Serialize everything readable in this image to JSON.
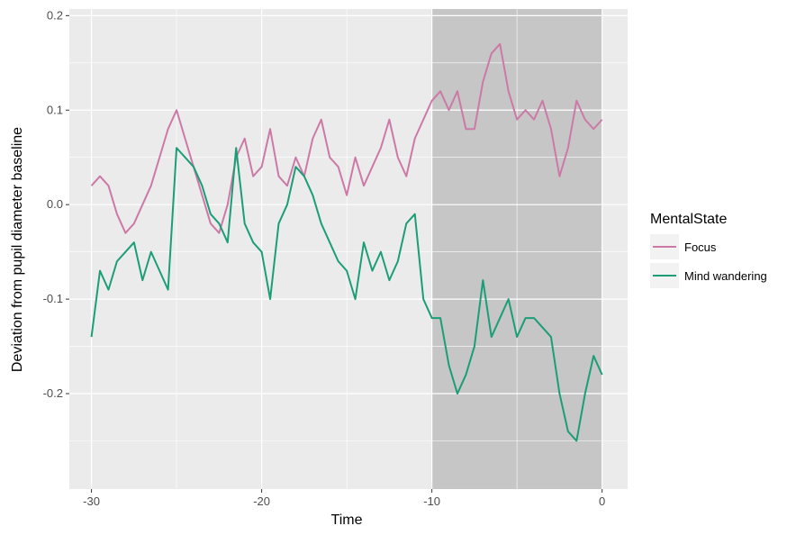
{
  "chart_data": {
    "type": "line",
    "xlabel": "Time",
    "ylabel": "Deviation from pupil diameter baseline",
    "legend_title": "MentalState",
    "legend": "right",
    "grid": true,
    "xlim": [
      -31.3,
      1.5
    ],
    "ylim": [
      -0.301,
      0.207
    ],
    "xticks": [
      -30,
      -20,
      -10,
      0
    ],
    "yticks": [
      0.2,
      0.1,
      {
        "value": 0,
        "label": "0.0"
      },
      -0.1,
      -0.2
    ],
    "xminor": [
      -25,
      -15,
      -5
    ],
    "yminor": [
      0.15,
      0.05,
      -0.05,
      -0.15,
      -0.25
    ],
    "highlight": [
      -10,
      0
    ],
    "highlight_color": "#c6c6c6",
    "x": [
      -30,
      -29.5,
      -29,
      -28.5,
      -28,
      -27.5,
      -27,
      -26.5,
      -26,
      -25.5,
      -25,
      -24.5,
      -24,
      -23.5,
      -23,
      -22.5,
      -22,
      -21.5,
      -21,
      -20.5,
      -20,
      -19.5,
      -19,
      -18.5,
      -18,
      -17.5,
      -17,
      -16.5,
      -16,
      -15.5,
      -15,
      -14.5,
      -14,
      -13.5,
      -13,
      -12.5,
      -12,
      -11.5,
      -11,
      -10.5,
      -10,
      -9.5,
      -9,
      -8.5,
      -8,
      -7.5,
      -7,
      -6.5,
      -6,
      -5.5,
      -5,
      -4.5,
      -4,
      -3.5,
      -3,
      -2.5,
      -2,
      -1.5,
      -1,
      -0.5,
      0
    ],
    "series": [
      {
        "name": "Focus",
        "color": "#cc79a7",
        "values": [
          0.02,
          0.03,
          0.02,
          -0.01,
          -0.03,
          -0.02,
          0.0,
          0.02,
          0.05,
          0.08,
          0.1,
          0.07,
          0.04,
          0.01,
          -0.02,
          -0.03,
          0.0,
          0.05,
          0.07,
          0.03,
          0.04,
          0.08,
          0.03,
          0.02,
          0.05,
          0.03,
          0.07,
          0.09,
          0.05,
          0.04,
          0.01,
          0.05,
          0.02,
          0.04,
          0.06,
          0.09,
          0.05,
          0.03,
          0.07,
          0.09,
          0.11,
          0.12,
          0.1,
          0.12,
          0.08,
          0.08,
          0.13,
          0.16,
          0.17,
          0.12,
          0.09,
          0.1,
          0.09,
          0.11,
          0.08,
          0.03,
          0.06,
          0.11,
          0.09,
          0.08,
          0.09
        ]
      },
      {
        "name": "Mind wandering",
        "color": "#1b9e77",
        "values": [
          -0.14,
          -0.07,
          -0.09,
          -0.06,
          -0.05,
          -0.04,
          -0.08,
          -0.05,
          -0.07,
          -0.09,
          0.06,
          0.05,
          0.04,
          0.02,
          -0.01,
          -0.02,
          -0.04,
          0.06,
          -0.02,
          -0.04,
          -0.05,
          -0.1,
          -0.02,
          0.0,
          0.04,
          0.03,
          0.01,
          -0.02,
          -0.04,
          -0.06,
          -0.07,
          -0.1,
          -0.04,
          -0.07,
          -0.05,
          -0.08,
          -0.06,
          -0.02,
          -0.01,
          -0.1,
          -0.12,
          -0.12,
          -0.17,
          -0.2,
          -0.18,
          -0.15,
          -0.08,
          -0.14,
          -0.12,
          -0.1,
          -0.14,
          -0.12,
          -0.12,
          -0.13,
          -0.14,
          -0.2,
          -0.24,
          -0.25,
          -0.2,
          -0.16,
          -0.18
        ]
      }
    ]
  }
}
